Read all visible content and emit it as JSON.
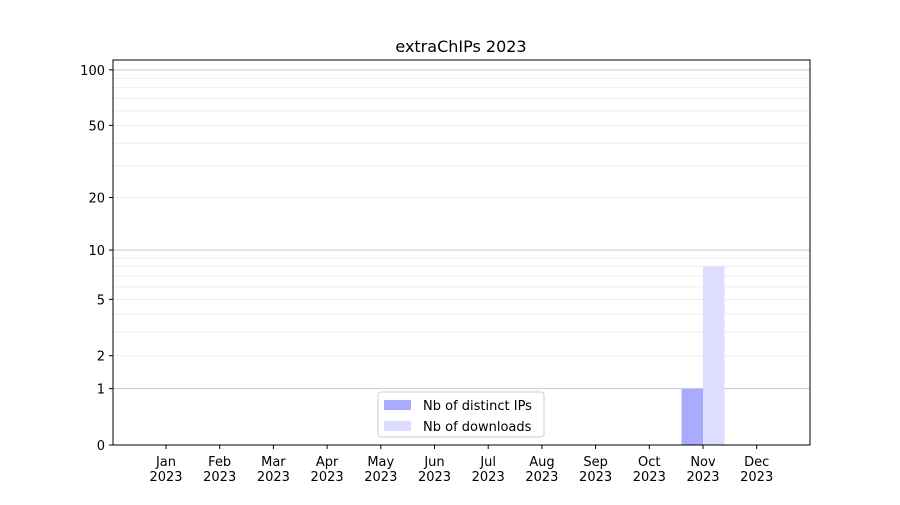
{
  "chart_data": {
    "type": "bar",
    "title": "extraChIPs 2023",
    "xlabel": "",
    "ylabel": "",
    "categories": [
      "Jan\n2023",
      "Feb\n2023",
      "Mar\n2023",
      "Apr\n2023",
      "May\n2023",
      "Jun\n2023",
      "Jul\n2023",
      "Aug\n2023",
      "Sep\n2023",
      "Oct\n2023",
      "Nov\n2023",
      "Dec\n2023"
    ],
    "series": [
      {
        "name": "Nb of distinct IPs",
        "color": "#aaaaff",
        "values": [
          0,
          0,
          0,
          0,
          0,
          0,
          0,
          0,
          0,
          0,
          1,
          0
        ]
      },
      {
        "name": "Nb of downloads",
        "color": "#ddddff",
        "values": [
          0,
          0,
          0,
          0,
          0,
          0,
          0,
          0,
          0,
          0,
          8,
          0
        ]
      }
    ],
    "yscale": "log10(1+y)",
    "ylim": [
      0,
      113
    ],
    "yticks": [
      0,
      1,
      2,
      5,
      10,
      20,
      50,
      100
    ],
    "grid": true,
    "legend_position": "bottom-center"
  }
}
